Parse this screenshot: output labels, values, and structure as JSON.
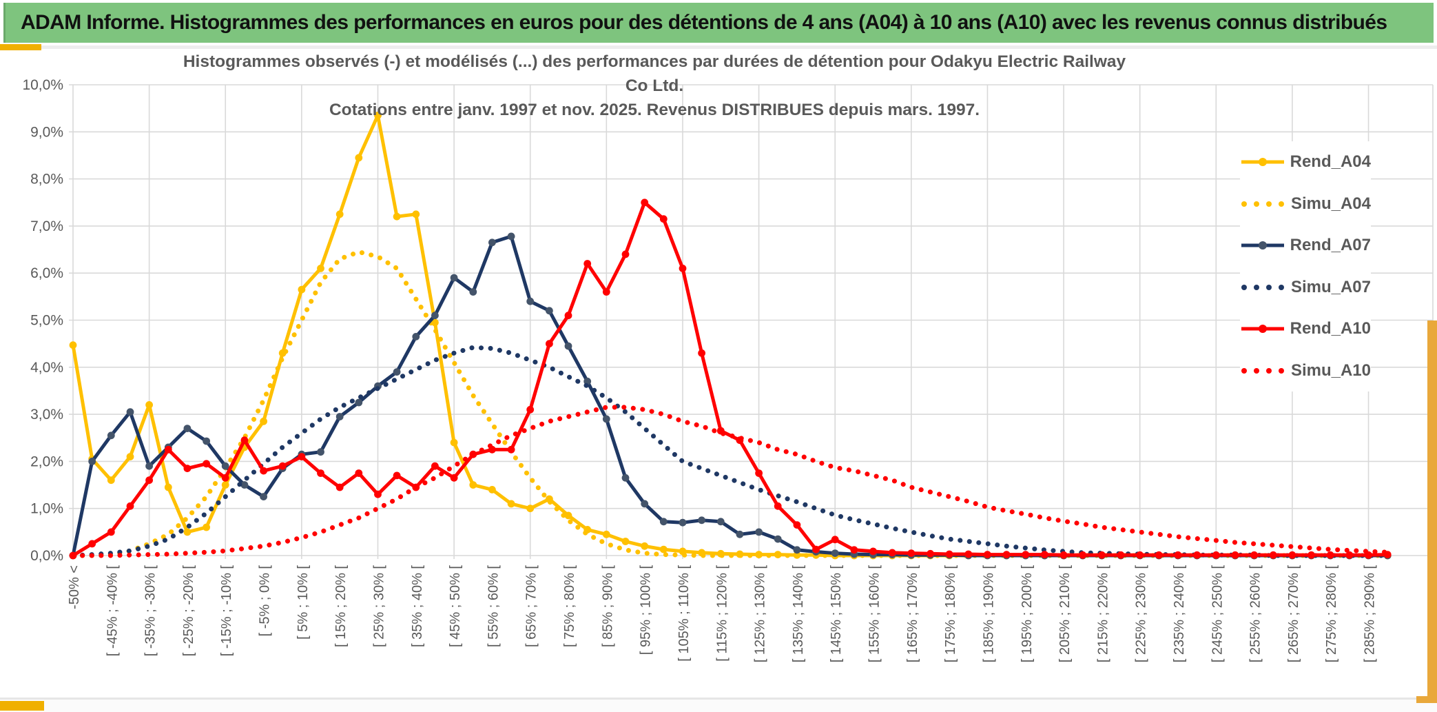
{
  "header": {
    "title": "ADAM Informe. Histogrammes des performances en euros pour des détentions de 4 ans (A04) à 10 ans (A10) avec les revenus connus distribués"
  },
  "chart_data": {
    "type": "line",
    "title_line1": "Histogrammes observés (-) et modélisés (...) des performances par durées de détention pour Odakyu Electric Railway Co Ltd.",
    "title_line2": "Cotations entre janv. 1997 et nov. 2025. Revenus DISTRIBUES depuis mars. 1997.",
    "ylabel": "",
    "xlabel": "",
    "ylim": [
      0,
      10
    ],
    "grid": true,
    "legend_position": "right",
    "y_ticks": [
      "10,0%",
      "9,0%",
      "8,0%",
      "7,0%",
      "6,0%",
      "5,0%",
      "4,0%",
      "3,0%",
      "2,0%",
      "1,0%",
      "0,0%"
    ],
    "categories": [
      "-50% <",
      "",
      "[ -45% ; -40% [",
      "",
      "[ -35% ; -30% [",
      "",
      "[ -25% ; -20% [",
      "",
      "[ -15% ; -10% [",
      "",
      "[ -5% ; 0% [",
      "",
      "[ 5% ; 10% [",
      "",
      "[ 15% ; 20% [",
      "",
      "[ 25% ; 30% [",
      "",
      "[ 35% ; 40% [",
      "",
      "[ 45% ; 50% [",
      "",
      "[ 55% ; 60% [",
      "",
      "[ 65% ; 70% [",
      "",
      "[ 75% ; 80% [",
      "",
      "[ 85% ; 90% [",
      "",
      "[ 95% ; 100% [",
      "",
      "[ 105% ; 110% [",
      "",
      "[ 115% ; 120% [",
      "",
      "[ 125% ; 130% [",
      "",
      "[ 135% ; 140% [",
      "",
      "[ 145% ; 150% [",
      "",
      "[ 155% ; 160% [",
      "",
      "[ 165% ; 170% [",
      "",
      "[ 175% ; 180% [",
      "",
      "[ 185% ; 190% [",
      "",
      "[ 195% ; 200% [",
      "",
      "[ 205% ; 210% [",
      "",
      "[ 215% ; 220% [",
      "",
      "[ 225% ; 230% [",
      "",
      "[ 235% ; 240% [",
      "",
      "[ 245% ; 250% [",
      "",
      "[ 255% ; 260% [",
      "",
      "[ 265% ; 270% [",
      "",
      "[ 275% ; 280% [",
      "",
      "[ 285% ; 290% [",
      ""
    ],
    "series": [
      {
        "name": "Rend_A04",
        "style": "solid",
        "color": "#FFC000",
        "marker_color": "#FFC000",
        "values": [
          4.47,
          2.05,
          1.6,
          2.1,
          3.2,
          1.45,
          0.5,
          0.6,
          1.5,
          2.3,
          2.85,
          4.3,
          5.65,
          6.1,
          7.25,
          8.45,
          9.35,
          7.2,
          7.25,
          4.95,
          2.4,
          1.5,
          1.4,
          1.1,
          1.0,
          1.2,
          0.85,
          0.55,
          0.45,
          0.3,
          0.2,
          0.13,
          0.09,
          0.06,
          0.04,
          0.03,
          0.02,
          0.02,
          0.01,
          0.01,
          0,
          0,
          0,
          0,
          0,
          0,
          0,
          0,
          0,
          0,
          0,
          0,
          0,
          0,
          0,
          0,
          0,
          0,
          0,
          0,
          0,
          0,
          0,
          0,
          0,
          0,
          0,
          0,
          0,
          0
        ]
      },
      {
        "name": "Simu_A04",
        "style": "dotted",
        "color": "#FFC000",
        "values": [
          0,
          0,
          0.02,
          0.1,
          0.25,
          0.45,
          0.8,
          1.25,
          1.85,
          2.5,
          3.3,
          4.2,
          5.0,
          5.8,
          6.3,
          6.45,
          6.35,
          6.1,
          5.45,
          4.8,
          4.1,
          3.4,
          2.8,
          2.2,
          1.65,
          1.15,
          0.75,
          0.45,
          0.25,
          0.12,
          0.05,
          0.02,
          0.01,
          0,
          0,
          0,
          0,
          0,
          0,
          0,
          0,
          0,
          0,
          0,
          0,
          0,
          0,
          0,
          0,
          0,
          0,
          0,
          0,
          0,
          0,
          0,
          0,
          0,
          0,
          0,
          0,
          0,
          0,
          0,
          0,
          0,
          0,
          0,
          0,
          0
        ]
      },
      {
        "name": "Rend_A07",
        "style": "solid",
        "color": "#1F3864",
        "marker_color": "#44546A",
        "values": [
          0,
          2.0,
          2.55,
          3.05,
          1.9,
          2.3,
          2.7,
          2.43,
          1.9,
          1.5,
          1.25,
          1.85,
          2.15,
          2.2,
          2.95,
          3.25,
          3.6,
          3.9,
          4.65,
          5.1,
          5.9,
          5.6,
          6.65,
          6.78,
          5.4,
          5.2,
          4.45,
          3.7,
          2.9,
          1.65,
          1.1,
          0.72,
          0.7,
          0.75,
          0.72,
          0.45,
          0.5,
          0.35,
          0.12,
          0.08,
          0.05,
          0.03,
          0.02,
          0.02,
          0.01,
          0.01,
          0.01,
          0,
          0,
          0,
          0,
          0,
          0,
          0,
          0,
          0,
          0,
          0,
          0,
          0,
          0,
          0,
          0,
          0,
          0,
          0,
          0,
          0,
          0,
          0
        ]
      },
      {
        "name": "Simu_A07",
        "style": "dotted",
        "color": "#1F3864",
        "values": [
          0,
          0.02,
          0.05,
          0.1,
          0.2,
          0.35,
          0.6,
          0.9,
          1.25,
          1.6,
          1.95,
          2.3,
          2.6,
          2.9,
          3.15,
          3.35,
          3.55,
          3.75,
          3.95,
          4.15,
          4.3,
          4.42,
          4.4,
          4.3,
          4.15,
          4.0,
          3.8,
          3.6,
          3.35,
          3.05,
          2.7,
          2.35,
          2.0,
          1.85,
          1.7,
          1.55,
          1.4,
          1.27,
          1.14,
          1.0,
          0.86,
          0.76,
          0.67,
          0.58,
          0.5,
          0.42,
          0.35,
          0.3,
          0.25,
          0.2,
          0.16,
          0.12,
          0.09,
          0.06,
          0.05,
          0.04,
          0.03,
          0.02,
          0.02,
          0.01,
          0.01,
          0.01,
          0.01,
          0,
          0,
          0,
          0,
          0,
          0,
          0
        ]
      },
      {
        "name": "Rend_A10",
        "style": "solid",
        "color": "#FF0000",
        "marker_color": "#FF0000",
        "values": [
          0,
          0.25,
          0.5,
          1.05,
          1.6,
          2.25,
          1.85,
          1.95,
          1.65,
          2.45,
          1.8,
          1.9,
          2.1,
          1.75,
          1.45,
          1.75,
          1.3,
          1.7,
          1.45,
          1.9,
          1.65,
          2.15,
          2.25,
          2.25,
          3.1,
          4.5,
          5.1,
          6.2,
          5.6,
          6.4,
          7.5,
          7.15,
          6.1,
          4.3,
          2.65,
          2.45,
          1.75,
          1.05,
          0.65,
          0.13,
          0.34,
          0.12,
          0.09,
          0.06,
          0.05,
          0.04,
          0.03,
          0.03,
          0.02,
          0.02,
          0.02,
          0.02,
          0.01,
          0.01,
          0.01,
          0.01,
          0.01,
          0.01,
          0.01,
          0.01,
          0.01,
          0.01,
          0.01,
          0.01,
          0.01,
          0.01,
          0.01,
          0.01,
          0.01,
          0.02
        ]
      },
      {
        "name": "Simu_A10",
        "style": "dotted",
        "color": "#FF0000",
        "values": [
          0,
          0,
          0,
          0.01,
          0.02,
          0.03,
          0.05,
          0.07,
          0.1,
          0.15,
          0.2,
          0.28,
          0.38,
          0.5,
          0.65,
          0.8,
          1.0,
          1.2,
          1.45,
          1.65,
          1.9,
          2.15,
          2.35,
          2.55,
          2.7,
          2.85,
          2.95,
          3.05,
          3.15,
          3.15,
          3.1,
          3.0,
          2.85,
          2.75,
          2.6,
          2.5,
          2.4,
          2.25,
          2.15,
          2.0,
          1.87,
          1.8,
          1.7,
          1.6,
          1.45,
          1.35,
          1.25,
          1.15,
          1.03,
          0.95,
          0.88,
          0.8,
          0.73,
          0.67,
          0.6,
          0.55,
          0.5,
          0.45,
          0.4,
          0.36,
          0.32,
          0.28,
          0.25,
          0.22,
          0.19,
          0.16,
          0.13,
          0.11,
          0.09,
          0.07
        ]
      }
    ],
    "colors": {
      "grid": "#D9D9D9",
      "axis_text": "#595959",
      "title_text": "#595959"
    }
  },
  "decor": {
    "header_green": "#7EC47E",
    "accent_gold": "#F0B000",
    "strip_gold": "#E9A83B"
  }
}
